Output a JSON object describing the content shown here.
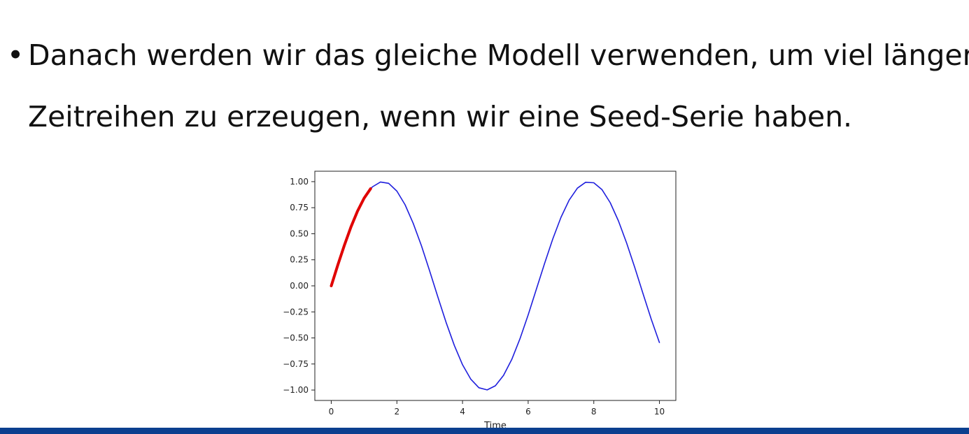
{
  "slide": {
    "bullet": "•",
    "line1": "Danach werden wir das gleiche Modell verwenden, um viel längere",
    "line2": "Zeitreihen zu erzeugen, wenn wir eine Seed-Serie haben."
  },
  "chart_data": {
    "type": "line",
    "xlabel": "Time",
    "ylabel": "",
    "xlim": [
      -0.5,
      10.5
    ],
    "ylim": [
      -1.1,
      1.1
    ],
    "xticks": [
      0,
      2,
      4,
      6,
      8,
      10
    ],
    "yticks": [
      1.0,
      0.75,
      0.5,
      0.25,
      0.0,
      -0.25,
      -0.5,
      -0.75,
      -1.0
    ],
    "xtick_labels": [
      "0",
      "2",
      "4",
      "6",
      "8",
      "10"
    ],
    "ytick_labels": [
      "1.00",
      "0.75",
      "0.50",
      "0.25",
      "0.00",
      "−0.25",
      "−0.50",
      "−0.75",
      "−1.00"
    ],
    "grid": false,
    "series": [
      {
        "color": "#1f1fdd",
        "x": [
          0,
          0.25,
          0.5,
          0.75,
          1.0,
          1.25,
          1.5,
          1.75,
          2.0,
          2.25,
          2.5,
          2.75,
          3.0,
          3.25,
          3.5,
          3.75,
          4.0,
          4.25,
          4.5,
          4.75,
          5.0,
          5.25,
          5.5,
          5.75,
          6.0,
          6.25,
          6.5,
          6.75,
          7.0,
          7.25,
          7.5,
          7.75,
          8.0,
          8.25,
          8.5,
          8.75,
          9.0,
          9.25,
          9.5,
          9.75,
          10.0
        ],
        "y": [
          0.0,
          0.247,
          0.479,
          0.682,
          0.841,
          0.949,
          0.997,
          0.984,
          0.909,
          0.778,
          0.598,
          0.382,
          0.141,
          -0.108,
          -0.351,
          -0.572,
          -0.757,
          -0.895,
          -0.978,
          -0.999,
          -0.959,
          -0.859,
          -0.706,
          -0.508,
          -0.279,
          -0.033,
          0.215,
          0.45,
          0.657,
          0.823,
          0.938,
          0.994,
          0.989,
          0.923,
          0.798,
          0.624,
          0.412,
          0.174,
          -0.075,
          -0.319,
          -0.544
        ]
      },
      {
        "color": "#e00000",
        "x": [
          0,
          0.2,
          0.4,
          0.6,
          0.8,
          1.0,
          1.2
        ],
        "y": [
          0.0,
          0.199,
          0.389,
          0.565,
          0.717,
          0.841,
          0.932
        ]
      }
    ]
  }
}
